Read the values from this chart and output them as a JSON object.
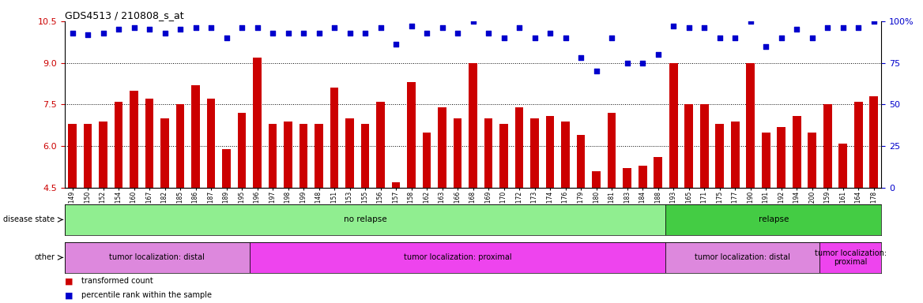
{
  "title": "GDS4513 / 210808_s_at",
  "samples": [
    "GSM452149",
    "GSM452150",
    "GSM452152",
    "GSM452154",
    "GSM452160",
    "GSM452167",
    "GSM452182",
    "GSM452185",
    "GSM452186",
    "GSM452187",
    "GSM452189",
    "GSM452195",
    "GSM452196",
    "GSM452197",
    "GSM452198",
    "GSM452199",
    "GSM452148",
    "GSM452151",
    "GSM452153",
    "GSM452155",
    "GSM452156",
    "GSM452157",
    "GSM452158",
    "GSM452162",
    "GSM452163",
    "GSM452166",
    "GSM452168",
    "GSM452169",
    "GSM452170",
    "GSM452172",
    "GSM452173",
    "GSM452174",
    "GSM452176",
    "GSM452179",
    "GSM452180",
    "GSM452181",
    "GSM452183",
    "GSM452184",
    "GSM452188",
    "GSM452193",
    "GSM452165",
    "GSM452171",
    "GSM452175",
    "GSM452177",
    "GSM452190",
    "GSM452191",
    "GSM452192",
    "GSM452194",
    "GSM452200",
    "GSM452159",
    "GSM452161",
    "GSM452164",
    "GSM452178"
  ],
  "bar_values": [
    6.8,
    6.8,
    6.9,
    7.6,
    8.0,
    7.7,
    7.0,
    7.5,
    8.2,
    7.7,
    5.9,
    7.2,
    9.2,
    6.8,
    6.9,
    6.8,
    6.8,
    8.1,
    7.0,
    6.8,
    7.6,
    4.7,
    8.3,
    6.5,
    7.4,
    7.0,
    9.0,
    7.0,
    6.8,
    7.4,
    7.0,
    7.1,
    6.9,
    6.4,
    5.1,
    7.2,
    5.2,
    5.3,
    5.6,
    9.0,
    7.5,
    7.5,
    6.8,
    6.9,
    9.0,
    6.5,
    6.7,
    7.1,
    6.5,
    7.5,
    6.1,
    7.6,
    7.8
  ],
  "percentile_values": [
    93,
    92,
    93,
    95,
    96,
    95,
    93,
    95,
    96,
    96,
    90,
    96,
    96,
    93,
    93,
    93,
    93,
    96,
    93,
    93,
    96,
    86,
    97,
    93,
    96,
    93,
    100,
    93,
    90,
    96,
    90,
    93,
    90,
    78,
    70,
    90,
    75,
    75,
    80,
    97,
    96,
    96,
    90,
    90,
    100,
    85,
    90,
    95,
    90,
    96,
    96,
    96,
    100
  ],
  "ylim_left": [
    4.5,
    10.5
  ],
  "ylim_right": [
    0,
    100
  ],
  "yticks_left": [
    4.5,
    6.0,
    7.5,
    9.0,
    10.5
  ],
  "yticks_right": [
    0,
    25,
    50,
    75,
    100
  ],
  "bar_color": "#cc0000",
  "dot_color": "#0000cc",
  "plot_bg": "#ffffff",
  "disease_state_segments": [
    {
      "label": "no relapse",
      "start": 0,
      "end": 39,
      "color": "#90ee90"
    },
    {
      "label": "relapse",
      "start": 39,
      "end": 53,
      "color": "#44cc44"
    }
  ],
  "other_segments": [
    {
      "label": "tumor localization: distal",
      "start": 0,
      "end": 12,
      "color": "#dd88dd"
    },
    {
      "label": "tumor localization: proximal",
      "start": 12,
      "end": 39,
      "color": "#ee44ee"
    },
    {
      "label": "tumor localization: distal",
      "start": 39,
      "end": 49,
      "color": "#dd88dd"
    },
    {
      "label": "tumor localization:\nproximal",
      "start": 49,
      "end": 53,
      "color": "#ee44ee"
    }
  ]
}
